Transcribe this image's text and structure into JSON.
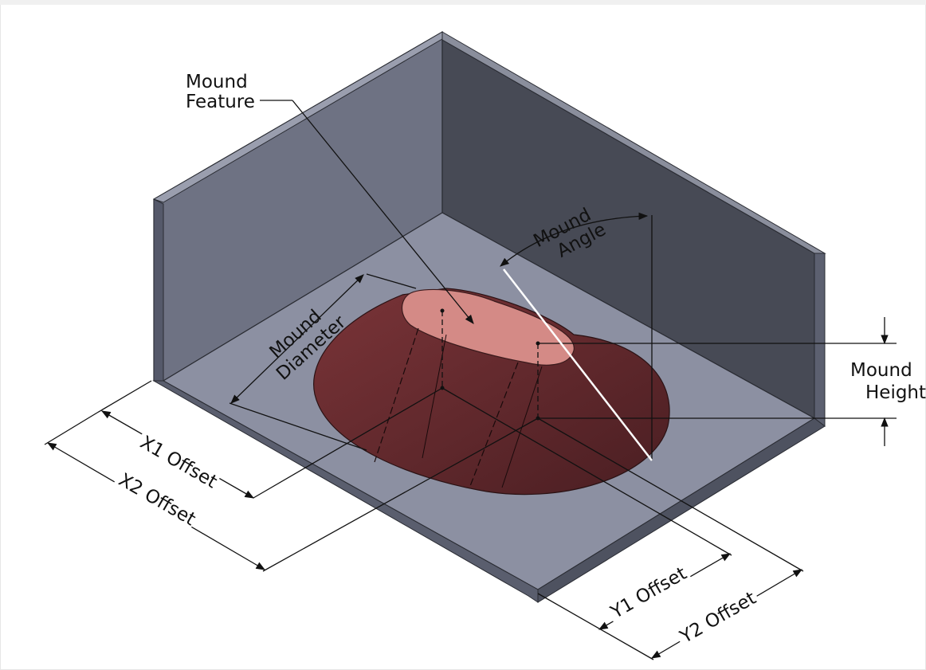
{
  "labels": {
    "mound_feature_line1": "Mound",
    "mound_feature_line2": "Feature",
    "mound_angle_line1": "Mound",
    "mound_angle_line2": "Angle",
    "mound_diameter_line1": "Mound",
    "mound_diameter_line2": "Diameter",
    "mound_height_line1": "Mound",
    "mound_height_line2": "Height",
    "x1_offset": "X1 Offset",
    "x2_offset": "X2 Offset",
    "y1_offset": "Y1 Offset",
    "y2_offset": "Y2 Offset"
  },
  "colors": {
    "wall_left": "#6e7283",
    "wall_back": "#474a55",
    "floor": "#8c90a2",
    "mound_side": "#5e2a2e",
    "mound_top": "#d48a86",
    "dimension_line": "#111111",
    "border": "#e6e6e6"
  }
}
